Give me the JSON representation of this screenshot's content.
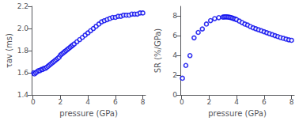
{
  "chart_data": [
    {
      "type": "scatter",
      "x": [
        0.05,
        0.1,
        0.2,
        0.3,
        0.4,
        0.5,
        0.6,
        0.7,
        0.8,
        0.9,
        1.0,
        1.1,
        1.2,
        1.3,
        1.4,
        1.5,
        1.6,
        1.7,
        1.8,
        1.9,
        2.0,
        2.1,
        2.2,
        2.3,
        2.4,
        2.5,
        2.6,
        2.7,
        2.8,
        2.9,
        3.0,
        3.2,
        3.4,
        3.6,
        3.8,
        4.0,
        4.2,
        4.4,
        4.6,
        4.8,
        5.0,
        5.2,
        5.4,
        5.6,
        5.8,
        6.0,
        6.2,
        6.4,
        6.6,
        6.8,
        7.0,
        7.2,
        7.4,
        7.6,
        7.8,
        8.0
      ],
      "values": [
        1.6,
        1.59,
        1.6,
        1.61,
        1.62,
        1.62,
        1.63,
        1.63,
        1.64,
        1.64,
        1.65,
        1.66,
        1.67,
        1.68,
        1.69,
        1.7,
        1.71,
        1.72,
        1.73,
        1.74,
        1.76,
        1.77,
        1.78,
        1.79,
        1.8,
        1.81,
        1.82,
        1.83,
        1.84,
        1.85,
        1.86,
        1.88,
        1.9,
        1.92,
        1.94,
        1.96,
        1.98,
        2.0,
        2.02,
        2.04,
        2.06,
        2.07,
        2.08,
        2.09,
        2.1,
        2.1,
        2.11,
        2.11,
        2.12,
        2.12,
        2.12,
        2.13,
        2.13,
        2.13,
        2.14,
        2.14
      ],
      "xlabel": "pressure (GPa)",
      "ylabel": "τav (ms)",
      "xlim": [
        -0.1,
        8.2
      ],
      "xticks": [
        0,
        2,
        4,
        6,
        8
      ],
      "ylim": [
        1.4,
        2.2
      ],
      "yticks": [
        1.4,
        1.6,
        1.8,
        {
          "value": 2.0,
          "label": "2.0"
        },
        2.2
      ],
      "color": "#0000EE",
      "marker": "ring",
      "grid": false
    },
    {
      "type": "scatter",
      "x": [
        0.05,
        0.3,
        0.6,
        0.9,
        1.2,
        1.5,
        1.8,
        2.1,
        2.4,
        2.7,
        3.0,
        3.1,
        3.2,
        3.3,
        3.4,
        3.5,
        3.6,
        3.7,
        3.8,
        3.9,
        4.0,
        4.2,
        4.4,
        4.6,
        4.8,
        5.0,
        5.2,
        5.4,
        5.6,
        5.8,
        6.0,
        6.2,
        6.4,
        6.6,
        6.8,
        7.0,
        7.2,
        7.4,
        7.6,
        7.8,
        8.0
      ],
      "values": [
        1.7,
        3.0,
        4.0,
        5.8,
        6.35,
        6.7,
        7.2,
        7.55,
        7.75,
        7.85,
        7.9,
        7.92,
        7.93,
        7.92,
        7.9,
        7.88,
        7.85,
        7.8,
        7.75,
        7.7,
        7.65,
        7.5,
        7.35,
        7.2,
        7.1,
        6.95,
        6.82,
        6.72,
        6.62,
        6.52,
        6.42,
        6.32,
        6.22,
        6.12,
        6.02,
        5.93,
        5.83,
        5.75,
        5.67,
        5.6,
        5.55
      ],
      "xlabel": "pressure (GPa)",
      "ylabel": "SR (%/GPa)",
      "xlim": [
        -0.1,
        8.2
      ],
      "xticks": [
        0,
        2,
        4,
        6,
        8
      ],
      "ylim": [
        0,
        9
      ],
      "yticks": [
        0,
        2,
        4,
        6,
        8
      ],
      "color": "#0000EE",
      "marker": "ring",
      "grid": false
    }
  ]
}
